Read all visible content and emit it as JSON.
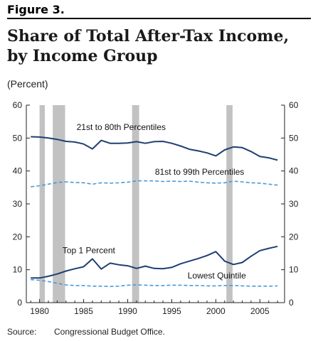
{
  "figure_label": "Figure 3.",
  "title": "Share of Total After-Tax Income, by Income Group",
  "units": "(Percent)",
  "source_label": "Source:",
  "source_text": "Congressional Budget Office.",
  "chart_data": {
    "type": "line",
    "x": [
      1979,
      1980,
      1981,
      1982,
      1983,
      1984,
      1985,
      1986,
      1987,
      1988,
      1989,
      1990,
      1991,
      1992,
      1993,
      1994,
      1995,
      1996,
      1997,
      1998,
      1999,
      2000,
      2001,
      2002,
      2003,
      2004,
      2005,
      2006,
      2007
    ],
    "xlim": [
      1978.5,
      2007.8
    ],
    "ylim": [
      0,
      60
    ],
    "x_ticks": [
      1980,
      1985,
      1990,
      1995,
      2000,
      2005
    ],
    "y_ticks": [
      0,
      10,
      20,
      30,
      40,
      50,
      60
    ],
    "recessions": [
      [
        1980.0,
        1980.6
      ],
      [
        1981.5,
        1982.9
      ],
      [
        1990.5,
        1991.3
      ],
      [
        2001.2,
        2001.9
      ]
    ],
    "colors": {
      "dark": "#1f3f73",
      "light": "#4a9ad8",
      "recession": "#c2c2c2"
    },
    "series": [
      {
        "name": "21st to 80th Percentiles",
        "style": "solid-dark",
        "values": [
          50.4,
          50.3,
          50.0,
          49.6,
          49.0,
          48.8,
          48.2,
          46.7,
          49.3,
          48.4,
          48.4,
          48.5,
          48.9,
          48.4,
          48.9,
          49.0,
          48.4,
          47.6,
          46.6,
          46.1,
          45.5,
          44.6,
          46.4,
          47.3,
          47.1,
          45.9,
          44.4,
          44.0,
          43.3
        ]
      },
      {
        "name": "81st to 99th Percentiles",
        "style": "dashed-light",
        "values": [
          35.2,
          35.5,
          36.0,
          36.5,
          36.7,
          36.5,
          36.4,
          36.0,
          36.4,
          36.3,
          36.4,
          36.6,
          37.0,
          37.0,
          37.0,
          36.8,
          36.9,
          36.8,
          36.9,
          36.6,
          36.4,
          36.3,
          36.4,
          36.9,
          36.7,
          36.4,
          36.3,
          36.0,
          35.7
        ]
      },
      {
        "name": "Top 1 Percent",
        "style": "solid-dark",
        "values": [
          7.5,
          7.5,
          8.0,
          8.7,
          9.6,
          10.3,
          10.9,
          13.3,
          10.2,
          12.0,
          11.5,
          11.2,
          10.4,
          11.1,
          10.4,
          10.3,
          10.7,
          11.8,
          12.6,
          13.4,
          14.3,
          15.5,
          12.6,
          11.6,
          12.2,
          14.1,
          15.8,
          16.5,
          17.1
        ]
      },
      {
        "name": "Lowest Quintile",
        "style": "dashed-light",
        "values": [
          7.0,
          6.8,
          6.4,
          5.9,
          5.4,
          5.2,
          5.2,
          5.0,
          5.0,
          4.9,
          5.0,
          5.3,
          5.4,
          5.3,
          5.2,
          5.2,
          5.3,
          5.3,
          5.2,
          5.2,
          5.1,
          5.1,
          5.2,
          5.2,
          5.1,
          5.0,
          5.0,
          5.0,
          5.1
        ]
      }
    ],
    "annotations": [
      {
        "text": "21st to 80th Percentiles",
        "at_x": 1984.2,
        "at_y": 52.5
      },
      {
        "text": "81st to 99th Percentiles",
        "at_x": 1993.1,
        "at_y": 38.9
      },
      {
        "text": "Top 1 Percent",
        "at_x": 1982.6,
        "at_y": 15.0
      },
      {
        "text": "Lowest Quintile",
        "at_x": 1996.8,
        "at_y": 7.3
      }
    ]
  }
}
